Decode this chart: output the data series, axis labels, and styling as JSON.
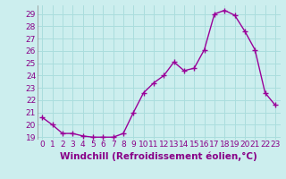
{
  "x": [
    0,
    1,
    2,
    3,
    4,
    5,
    6,
    7,
    8,
    9,
    10,
    11,
    12,
    13,
    14,
    15,
    16,
    17,
    18,
    19,
    20,
    21,
    22,
    23
  ],
  "y": [
    20.6,
    20.0,
    19.3,
    19.3,
    19.1,
    19.0,
    19.0,
    19.0,
    19.3,
    21.0,
    22.6,
    23.4,
    24.0,
    25.1,
    24.4,
    24.6,
    26.1,
    29.0,
    29.3,
    28.9,
    27.6,
    26.1,
    22.6,
    21.6
  ],
  "line_color": "#990099",
  "marker": "+",
  "marker_size": 4,
  "linewidth": 1.0,
  "xlabel": "Windchill (Refroidissement éolien,°C)",
  "xlabel_fontsize": 7.5,
  "background_color": "#cceeee",
  "grid_color": "#aadddd",
  "ylim": [
    18.8,
    29.7
  ],
  "xlim": [
    -0.5,
    23.5
  ],
  "yticks": [
    19,
    20,
    21,
    22,
    23,
    24,
    25,
    26,
    27,
    28,
    29
  ],
  "xtick_labels": [
    "0",
    "1",
    "2",
    "3",
    "4",
    "5",
    "6",
    "7",
    "8",
    "9",
    "10",
    "11",
    "12",
    "13",
    "14",
    "15",
    "16",
    "17",
    "18",
    "19",
    "20",
    "21",
    "22",
    "23"
  ],
  "tick_fontsize": 6.5,
  "tick_color": "#880088"
}
